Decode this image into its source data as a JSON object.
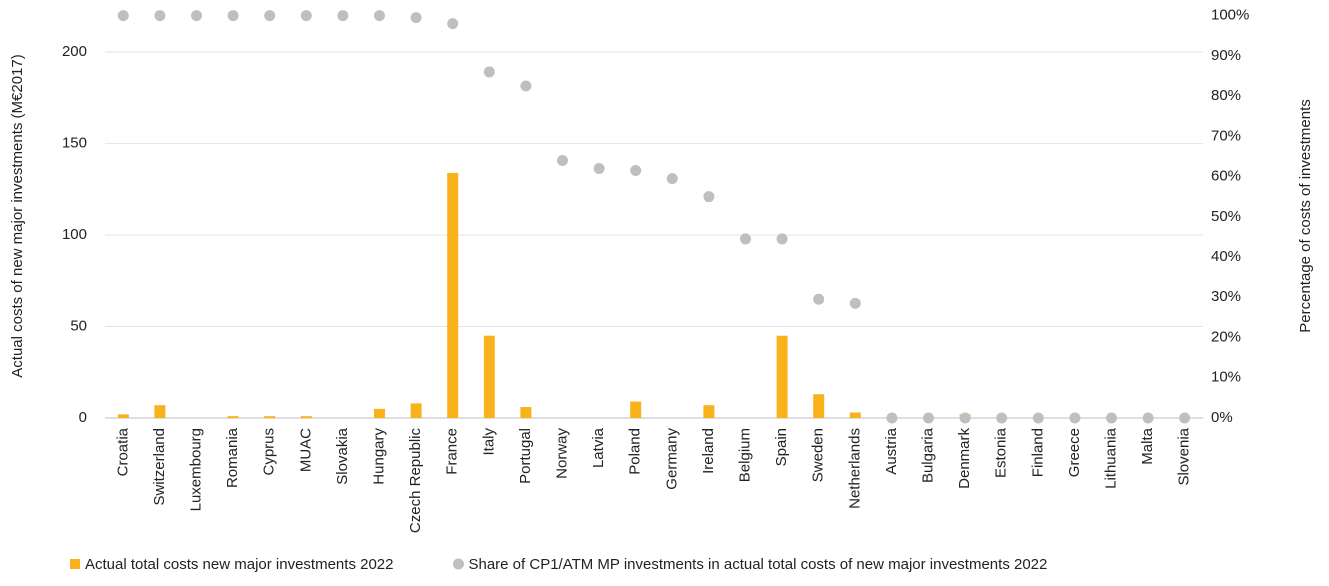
{
  "chart_data": {
    "type": "bar",
    "y_label": "Actual costs of new major investments (M€2017)",
    "y2_label": "Percentage of costs of investments",
    "categories": [
      "Croatia",
      "Switzerland",
      "Luxembourg",
      "Romania",
      "Cyprus",
      "MUAC",
      "Slovakia",
      "Hungary",
      "Czech Republic",
      "France",
      "Italy",
      "Portugal",
      "Norway",
      "Latvia",
      "Poland",
      "Germany",
      "Ireland",
      "Belgium",
      "Spain",
      "Sweden",
      "Netherlands",
      "Austria",
      "Bulgaria",
      "Denmark",
      "Estonia",
      "Finland",
      "Greece",
      "Lithuania",
      "Malta",
      "Slovenia"
    ],
    "series": [
      {
        "name": "Actual total costs new major investments 2022",
        "type": "bar",
        "color": "#f9b21b",
        "values": [
          2,
          7,
          0,
          1,
          1,
          1,
          0,
          5,
          8,
          134,
          45,
          6,
          0,
          0,
          9,
          0,
          7,
          0,
          45,
          13,
          3,
          0,
          0,
          2,
          0,
          0,
          0,
          0,
          0,
          0
        ]
      },
      {
        "name": "Share of CP1/ATM MP investments in actual total costs of new major investments 2022",
        "type": "scatter",
        "axis": "y2",
        "color": "#bfbfbf",
        "values": [
          100,
          100,
          100,
          100,
          100,
          100,
          100,
          100,
          99.5,
          98,
          86,
          82.5,
          64,
          62,
          61.5,
          59.5,
          55,
          44.5,
          44.5,
          29.5,
          28.5,
          0,
          0,
          0,
          0,
          0,
          0,
          0,
          0,
          0
        ]
      }
    ],
    "ylim": [
      0,
      220
    ],
    "yticks": [
      0,
      50,
      100,
      150,
      200
    ],
    "y2lim": [
      0,
      100
    ],
    "y2ticks": [
      {
        "value": 0,
        "label": "0%"
      },
      {
        "value": 10,
        "label": "10%"
      },
      {
        "value": 20,
        "label": "20%"
      },
      {
        "value": 30,
        "label": "30%"
      },
      {
        "value": 40,
        "label": "40%"
      },
      {
        "value": 50,
        "label": "50%"
      },
      {
        "value": 60,
        "label": "60%"
      },
      {
        "value": 70,
        "label": "70%"
      },
      {
        "value": 80,
        "label": "80%"
      },
      {
        "value": 90,
        "label": "90%"
      },
      {
        "value": 100,
        "label": "100%"
      }
    ],
    "grid": true
  }
}
